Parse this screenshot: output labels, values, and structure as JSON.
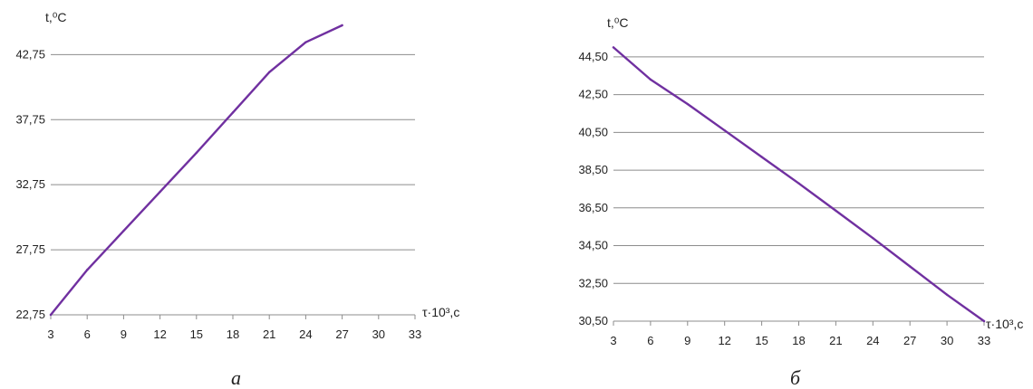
{
  "chart_data": [
    {
      "type": "line",
      "ylabel": "t,⁰C",
      "xlabel": "τ·10³,с",
      "caption": "а",
      "xlim": [
        3,
        33
      ],
      "ylim": [
        22.75,
        45.0
      ],
      "xticks": [
        "3",
        "6",
        "9",
        "12",
        "15",
        "18",
        "21",
        "24",
        "27",
        "30",
        "33"
      ],
      "yticks": [
        "22,75",
        "27,75",
        "32,75",
        "37,75",
        "42,75"
      ],
      "ytick_values": [
        22.75,
        27.75,
        32.75,
        37.75,
        42.75
      ],
      "grid": true,
      "color": "#7030a0",
      "x": [
        3,
        6,
        9,
        12,
        15,
        18,
        21,
        24,
        27
      ],
      "y": [
        22.75,
        26.2,
        29.2,
        32.2,
        35.2,
        38.3,
        41.4,
        43.7,
        45.0
      ]
    },
    {
      "type": "line",
      "ylabel": "t,⁰C",
      "xlabel": "τ·10³,с",
      "caption": "б",
      "xlim": [
        3,
        33
      ],
      "ylim": [
        30.5,
        45.5
      ],
      "xticks": [
        "3",
        "6",
        "9",
        "12",
        "15",
        "18",
        "21",
        "24",
        "27",
        "30",
        "33"
      ],
      "yticks": [
        "30,50",
        "32,50",
        "34,50",
        "36,50",
        "38,50",
        "40,50",
        "42,50",
        "44,50"
      ],
      "ytick_values": [
        30.5,
        32.5,
        34.5,
        36.5,
        38.5,
        40.5,
        42.5,
        44.5
      ],
      "grid": true,
      "color": "#7030a0",
      "x": [
        3,
        6,
        9,
        12,
        15,
        18,
        21,
        24,
        27,
        30,
        33
      ],
      "y": [
        45.0,
        43.3,
        42.0,
        40.6,
        39.2,
        37.8,
        36.35,
        34.9,
        33.4,
        31.9,
        30.5
      ]
    }
  ]
}
